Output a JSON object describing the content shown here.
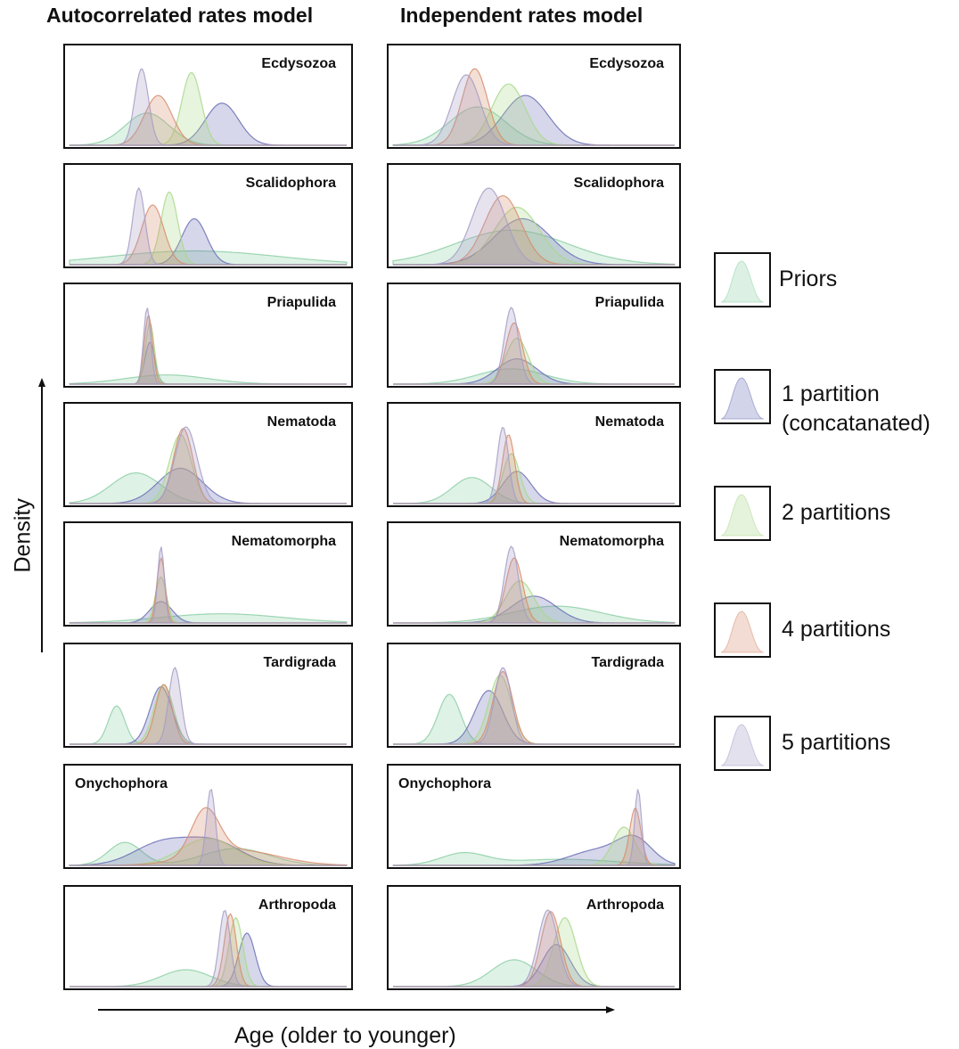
{
  "columns": [
    "Autocorrelated rates model",
    "Independent rates model"
  ],
  "ylabel": "Density",
  "xlabel": "Age (older to younger)",
  "legend": [
    {
      "label": "Priors",
      "color": "#8ccfa4"
    },
    {
      "label": "1 partition\n(concatanated)",
      "color": "#6b6fb5"
    },
    {
      "label": "2 partitions",
      "color": "#a9d88a"
    },
    {
      "label": "4 partitions",
      "color": "#d68c6c"
    },
    {
      "label": "5 partitions",
      "color": "#a59cc6"
    }
  ],
  "chart_data": {
    "type": "area",
    "xlabel": "Age (older to younger)",
    "ylabel": "Density",
    "series_names": [
      "Priors",
      "1 partition (concatanated)",
      "2 partitions",
      "4 partitions",
      "5 partitions"
    ],
    "x_range": [
      0,
      1
    ],
    "note_units": "x is relative age along each panel (0 = oldest, 1 = youngest); height is relative density (1 = tallest peak in panel)",
    "panels": [
      {
        "taxon": "Ecdysozoa",
        "model": "Autocorrelated rates model",
        "label_pos": "right",
        "curves": [
          {
            "series": "Priors",
            "peaks": [
              [
                0.28,
                0.08,
                0.42
              ]
            ]
          },
          {
            "series": "1 partition (concatanated)",
            "peaks": [
              [
                0.55,
                0.06,
                0.55
              ]
            ]
          },
          {
            "series": "2 partitions",
            "peaks": [
              [
                0.44,
                0.035,
                0.95
              ]
            ]
          },
          {
            "series": "4 partitions",
            "peaks": [
              [
                0.32,
                0.05,
                0.65
              ]
            ]
          },
          {
            "series": "5 partitions",
            "peaks": [
              [
                0.26,
                0.025,
                1.0
              ]
            ]
          }
        ]
      },
      {
        "taxon": "Ecdysozoa",
        "model": "Independent rates model",
        "label_pos": "right",
        "curves": [
          {
            "series": "Priors",
            "peaks": [
              [
                0.3,
                0.1,
                0.5
              ]
            ]
          },
          {
            "series": "1 partition (concatanated)",
            "peaks": [
              [
                0.47,
                0.08,
                0.65
              ]
            ]
          },
          {
            "series": "2 partitions",
            "peaks": [
              [
                0.41,
                0.06,
                0.8
              ]
            ]
          },
          {
            "series": "4 partitions",
            "peaks": [
              [
                0.29,
                0.045,
                1.0
              ]
            ]
          },
          {
            "series": "5 partitions",
            "peaks": [
              [
                0.26,
                0.05,
                0.92
              ]
            ]
          }
        ]
      },
      {
        "taxon": "Scalidophora",
        "model": "Autocorrelated rates model",
        "label_pos": "right",
        "curves": [
          {
            "series": "Priors",
            "peaks": [
              [
                0.45,
                0.3,
                0.18
              ]
            ]
          },
          {
            "series": "1 partition (concatanated)",
            "peaks": [
              [
                0.45,
                0.045,
                0.6
              ]
            ]
          },
          {
            "series": "2 partitions",
            "peaks": [
              [
                0.36,
                0.03,
                0.95
              ]
            ]
          },
          {
            "series": "4 partitions",
            "peaks": [
              [
                0.3,
                0.04,
                0.78
              ]
            ]
          },
          {
            "series": "5 partitions",
            "peaks": [
              [
                0.25,
                0.022,
                1.0
              ]
            ]
          }
        ]
      },
      {
        "taxon": "Scalidophora",
        "model": "Independent rates model",
        "label_pos": "right",
        "curves": [
          {
            "series": "Priors",
            "peaks": [
              [
                0.42,
                0.2,
                0.45
              ]
            ]
          },
          {
            "series": "1 partition (concatanated)",
            "peaks": [
              [
                0.46,
                0.1,
                0.6
              ]
            ]
          },
          {
            "series": "2 partitions",
            "peaks": [
              [
                0.44,
                0.08,
                0.75
              ]
            ]
          },
          {
            "series": "4 partitions",
            "peaks": [
              [
                0.39,
                0.065,
                0.9
              ]
            ]
          },
          {
            "series": "5 partitions",
            "peaks": [
              [
                0.34,
                0.06,
                1.0
              ]
            ]
          }
        ]
      },
      {
        "taxon": "Priapulida",
        "model": "Autocorrelated rates model",
        "label_pos": "right",
        "curves": [
          {
            "series": "Priors",
            "peaks": [
              [
                0.35,
                0.15,
                0.12
              ]
            ]
          },
          {
            "series": "1 partition (concatanated)",
            "peaks": [
              [
                0.29,
                0.018,
                0.55
              ]
            ]
          },
          {
            "series": "2 partitions",
            "peaks": [
              [
                0.29,
                0.016,
                0.8
              ]
            ]
          },
          {
            "series": "4 partitions",
            "peaks": [
              [
                0.285,
                0.015,
                0.9
              ]
            ]
          },
          {
            "series": "5 partitions",
            "peaks": [
              [
                0.28,
                0.013,
                1.0
              ]
            ]
          }
        ]
      },
      {
        "taxon": "Priapulida",
        "model": "Independent rates model",
        "label_pos": "right",
        "curves": [
          {
            "series": "Priors",
            "peaks": [
              [
                0.42,
                0.12,
                0.2
              ]
            ]
          },
          {
            "series": "1 partition (concatanated)",
            "peaks": [
              [
                0.44,
                0.07,
                0.33
              ]
            ]
          },
          {
            "series": "2 partitions",
            "peaks": [
              [
                0.44,
                0.04,
                0.6
              ]
            ]
          },
          {
            "series": "4 partitions",
            "peaks": [
              [
                0.43,
                0.03,
                0.8
              ]
            ]
          },
          {
            "series": "5 partitions",
            "peaks": [
              [
                0.42,
                0.025,
                1.0
              ]
            ]
          }
        ]
      },
      {
        "taxon": "Nematoda",
        "model": "Autocorrelated rates model",
        "label_pos": "right",
        "curves": [
          {
            "series": "Priors",
            "peaks": [
              [
                0.24,
                0.09,
                0.4
              ]
            ]
          },
          {
            "series": "1 partition (concatanated)",
            "peaks": [
              [
                0.4,
                0.08,
                0.46
              ]
            ]
          },
          {
            "series": "2 partitions",
            "peaks": [
              [
                0.4,
                0.04,
                0.9
              ]
            ]
          },
          {
            "series": "4 partitions",
            "peaks": [
              [
                0.41,
                0.035,
                0.98
              ]
            ]
          },
          {
            "series": "5 partitions",
            "peaks": [
              [
                0.42,
                0.04,
                1.0
              ]
            ]
          }
        ]
      },
      {
        "taxon": "Nematoda",
        "model": "Independent rates model",
        "label_pos": "right",
        "curves": [
          {
            "series": "Priors",
            "peaks": [
              [
                0.28,
                0.07,
                0.34
              ]
            ]
          },
          {
            "series": "1 partition (concatanated)",
            "peaks": [
              [
                0.44,
                0.05,
                0.42
              ]
            ]
          },
          {
            "series": "2 partitions",
            "peaks": [
              [
                0.42,
                0.03,
                0.65
              ]
            ]
          },
          {
            "series": "4 partitions",
            "peaks": [
              [
                0.41,
                0.022,
                0.9
              ]
            ]
          },
          {
            "series": "5 partitions",
            "peaks": [
              [
                0.39,
                0.02,
                1.0
              ]
            ]
          }
        ]
      },
      {
        "taxon": "Nematomorpha",
        "model": "Autocorrelated rates model",
        "label_pos": "right",
        "curves": [
          {
            "series": "Priors",
            "peaks": [
              [
                0.55,
                0.22,
                0.12
              ]
            ]
          },
          {
            "series": "1 partition (concatanated)",
            "peaks": [
              [
                0.33,
                0.04,
                0.28
              ]
            ]
          },
          {
            "series": "2 partitions",
            "peaks": [
              [
                0.33,
                0.02,
                0.6
              ]
            ]
          },
          {
            "series": "4 partitions",
            "peaks": [
              [
                0.33,
                0.015,
                0.85
              ]
            ]
          },
          {
            "series": "5 partitions",
            "peaks": [
              [
                0.33,
                0.012,
                1.0
              ]
            ]
          }
        ]
      },
      {
        "taxon": "Nematomorpha",
        "model": "Independent rates model",
        "label_pos": "right",
        "curves": [
          {
            "series": "Priors",
            "peaks": [
              [
                0.58,
                0.16,
                0.22
              ]
            ]
          },
          {
            "series": "1 partition (concatanated)",
            "peaks": [
              [
                0.5,
                0.08,
                0.35
              ]
            ]
          },
          {
            "series": "2 partitions",
            "peaks": [
              [
                0.45,
                0.05,
                0.55
              ]
            ]
          },
          {
            "series": "4 partitions",
            "peaks": [
              [
                0.43,
                0.03,
                0.85
              ]
            ]
          },
          {
            "series": "5 partitions",
            "peaks": [
              [
                0.42,
                0.025,
                1.0
              ]
            ]
          }
        ]
      },
      {
        "taxon": "Tardigrada",
        "model": "Autocorrelated rates model",
        "label_pos": "right",
        "curves": [
          {
            "series": "Priors",
            "peaks": [
              [
                0.17,
                0.03,
                0.5
              ]
            ]
          },
          {
            "series": "1 partition (concatanated)",
            "peaks": [
              [
                0.33,
                0.04,
                0.75
              ]
            ]
          },
          {
            "series": "2 partitions",
            "peaks": [
              [
                0.34,
                0.035,
                0.78
              ]
            ]
          },
          {
            "series": "4 partitions",
            "peaks": [
              [
                0.34,
                0.03,
                0.78
              ]
            ]
          },
          {
            "series": "5 partitions",
            "peaks": [
              [
                0.38,
                0.022,
                1.0
              ]
            ]
          }
        ]
      },
      {
        "taxon": "Tardigrada",
        "model": "Independent rates model",
        "label_pos": "right",
        "curves": [
          {
            "series": "Priors",
            "peaks": [
              [
                0.2,
                0.04,
                0.65
              ]
            ]
          },
          {
            "series": "1 partition (concatanated)",
            "peaks": [
              [
                0.34,
                0.05,
                0.7
              ]
            ]
          },
          {
            "series": "2 partitions",
            "peaks": [
              [
                0.38,
                0.04,
                0.9
              ]
            ]
          },
          {
            "series": "4 partitions",
            "peaks": [
              [
                0.39,
                0.035,
                0.95
              ]
            ]
          },
          {
            "series": "5 partitions",
            "peaks": [
              [
                0.39,
                0.03,
                1.0
              ]
            ]
          }
        ]
      },
      {
        "taxon": "Onychophora",
        "model": "Autocorrelated rates model",
        "label_pos": "left",
        "curves": [
          {
            "series": "Priors",
            "peaks": [
              [
                0.2,
                0.06,
                0.3
              ],
              [
                0.6,
                0.12,
                0.22
              ]
            ]
          },
          {
            "series": "1 partition (concatanated)",
            "peaks": [
              [
                0.33,
                0.1,
                0.28
              ],
              [
                0.52,
                0.1,
                0.3
              ]
            ]
          },
          {
            "series": "2 partitions",
            "peaks": [
              [
                0.5,
                0.1,
                0.35
              ]
            ]
          },
          {
            "series": "4 partitions",
            "peaks": [
              [
                0.49,
                0.05,
                0.6
              ],
              [
                0.6,
                0.15,
                0.2
              ]
            ]
          },
          {
            "series": "5 partitions",
            "peaks": [
              [
                0.51,
                0.016,
                1.0
              ]
            ]
          }
        ]
      },
      {
        "taxon": "Onychophora",
        "model": "Independent rates model",
        "label_pos": "left",
        "curves": [
          {
            "series": "Priors",
            "peaks": [
              [
                0.25,
                0.08,
                0.15
              ],
              [
                0.6,
                0.2,
                0.08
              ]
            ]
          },
          {
            "series": "1 partition (concatanated)",
            "peaks": [
              [
                0.73,
                0.1,
                0.2
              ],
              [
                0.86,
                0.06,
                0.3
              ]
            ]
          },
          {
            "series": "2 partitions",
            "peaks": [
              [
                0.82,
                0.04,
                0.5
              ]
            ]
          },
          {
            "series": "4 partitions",
            "peaks": [
              [
                0.86,
                0.02,
                0.75
              ]
            ]
          },
          {
            "series": "5 partitions",
            "peaks": [
              [
                0.87,
                0.012,
                1.0
              ]
            ]
          }
        ]
      },
      {
        "taxon": "Arthropoda",
        "model": "Autocorrelated rates model",
        "label_pos": "right",
        "curves": [
          {
            "series": "Priors",
            "peaks": [
              [
                0.42,
                0.09,
                0.22
              ]
            ]
          },
          {
            "series": "1 partition (concatanated)",
            "peaks": [
              [
                0.64,
                0.03,
                0.7
              ]
            ]
          },
          {
            "series": "2 partitions",
            "peaks": [
              [
                0.6,
                0.025,
                0.9
              ]
            ]
          },
          {
            "series": "4 partitions",
            "peaks": [
              [
                0.58,
                0.022,
                0.95
              ]
            ]
          },
          {
            "series": "5 partitions",
            "peaks": [
              [
                0.56,
                0.02,
                1.0
              ]
            ]
          }
        ]
      },
      {
        "taxon": "Arthropoda",
        "model": "Independent rates model",
        "label_pos": "right",
        "curves": [
          {
            "series": "Priors",
            "peaks": [
              [
                0.43,
                0.08,
                0.35
              ]
            ]
          },
          {
            "series": "1 partition (concatanated)",
            "peaks": [
              [
                0.58,
                0.05,
                0.55
              ]
            ]
          },
          {
            "series": "2 partitions",
            "peaks": [
              [
                0.61,
                0.04,
                0.9
              ]
            ]
          },
          {
            "series": "4 partitions",
            "peaks": [
              [
                0.56,
                0.035,
                0.98
              ]
            ]
          },
          {
            "series": "5 partitions",
            "peaks": [
              [
                0.55,
                0.035,
                1.0
              ]
            ]
          }
        ]
      }
    ]
  }
}
